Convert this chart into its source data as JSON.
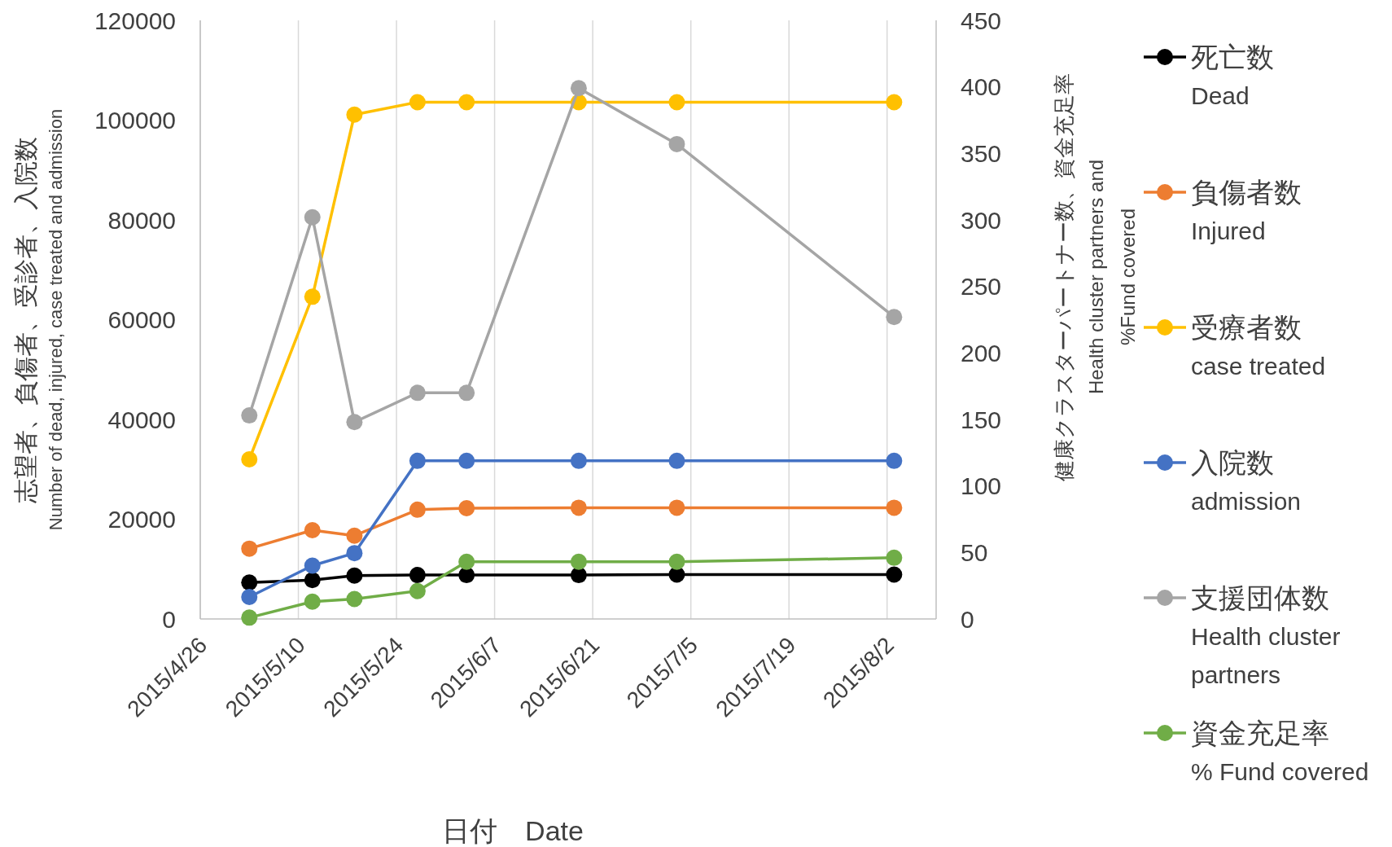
{
  "chart_data": {
    "type": "line",
    "xlabel": "日付　Date",
    "ylabel": "志望者、負傷者、受診者、入院数\nNumber of dead, injured, case treated and admission",
    "y2label": "健康クラスターパートナー数、資金充足率\nHealth cluster partners and\n%Fund covered",
    "x": [
      "2015-05-03",
      "2015-05-12",
      "2015-05-18",
      "2015-05-27",
      "2015-06-03",
      "2015-06-19",
      "2015-07-03",
      "2015-08-03"
    ],
    "series": [
      {
        "name": "死亡数\nDead",
        "color": "#000000",
        "values": [
          7300,
          7800,
          8700,
          8800,
          8800,
          8800,
          8900,
          8900
        ]
      },
      {
        "name": "負傷者数\nInjured",
        "color": "#ed7d31",
        "values": [
          14100,
          17800,
          16700,
          21900,
          22200,
          22300,
          22300,
          22300
        ]
      },
      {
        "name": "受療者数\ncase treated",
        "color": "#ffc000",
        "values": [
          32000,
          64600,
          101100,
          103600,
          103600,
          103600,
          103600,
          103600
        ]
      },
      {
        "name": "入院数\nadmission",
        "color": "#4472c4",
        "values": [
          4400,
          10700,
          13200,
          31700,
          31700,
          31700,
          31700,
          31700
        ]
      },
      {
        "name": "支援団体数\nHealth cluster partners",
        "color": "#a5a5a5",
        "axis": "y2",
        "values": [
          153,
          302,
          148,
          170,
          170,
          399,
          357,
          227
        ]
      },
      {
        "name": "資金充足率\n% Fund  covered",
        "color": "#70ad47",
        "axis": "y2",
        "values": [
          1,
          13,
          15,
          21,
          43,
          43,
          43,
          46
        ]
      }
    ],
    "xlim": [
      "2015-04-26",
      "2015-08-09"
    ],
    "xticks": [
      {
        "value": "2015-04-26",
        "label": "2015/4/26"
      },
      {
        "value": "2015-05-10",
        "label": "2015/5/10"
      },
      {
        "value": "2015-05-24",
        "label": "2015/5/24"
      },
      {
        "value": "2015-06-07",
        "label": "2015/6/7"
      },
      {
        "value": "2015-06-21",
        "label": "2015/6/21"
      },
      {
        "value": "2015-07-05",
        "label": "2015/7/5"
      },
      {
        "value": "2015-07-19",
        "label": "2015/7/19"
      },
      {
        "value": "2015-08-02",
        "label": "2015/8/2"
      }
    ],
    "ylim": [
      0,
      120000
    ],
    "yticks": [
      0,
      20000,
      40000,
      60000,
      80000,
      100000,
      120000
    ],
    "y2lim": [
      0,
      450
    ],
    "y2ticks": [
      0,
      50,
      100,
      150,
      200,
      250,
      300,
      350,
      400,
      450
    ],
    "grid": "x",
    "legend": "right",
    "marker": "circle",
    "line_style": "solid"
  }
}
